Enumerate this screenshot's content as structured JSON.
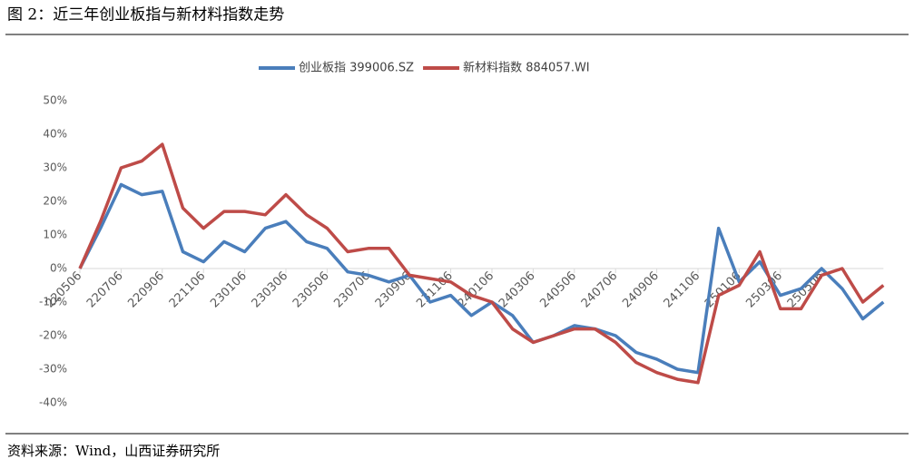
{
  "chart_data": {
    "type": "line",
    "title": "图 2：近三年创业板指与新材料指数走势",
    "source": "资料来源：Wind，山西证券研究所",
    "categories": [
      "220506",
      null,
      "220706",
      null,
      "220906",
      null,
      "221106",
      null,
      "230106",
      null,
      "230306",
      null,
      "230506",
      null,
      "230706",
      null,
      "230906",
      null,
      "231106",
      null,
      "240106",
      null,
      "240306",
      null,
      "240506",
      null,
      "240706",
      null,
      "240906",
      null,
      "241106",
      null,
      "250106",
      null,
      "250306",
      null,
      "250506",
      null,
      null,
      null
    ],
    "series": [
      {
        "name": "创业板指 399006.SZ",
        "color": "#4a7ebb",
        "values": [
          0,
          12,
          25,
          22,
          23,
          5,
          2,
          8,
          5,
          12,
          14,
          8,
          6,
          -1,
          -2,
          -4,
          -2,
          -10,
          -8,
          -14,
          -10,
          -14,
          -22,
          -20,
          -17,
          -18,
          -20,
          -25,
          -27,
          -30,
          -31,
          12,
          -4,
          2,
          -8,
          -6,
          0,
          -6,
          -15,
          -10
        ]
      },
      {
        "name": "新材料指数 884057.WI",
        "color": "#be4b48",
        "values": [
          0,
          14,
          30,
          32,
          37,
          18,
          12,
          17,
          17,
          16,
          22,
          16,
          12,
          5,
          6,
          6,
          -2,
          -3,
          -4,
          -8,
          -10,
          -18,
          -22,
          -20,
          -18,
          -18,
          -22,
          -28,
          -31,
          -33,
          -34,
          -8,
          -5,
          5,
          -12,
          -12,
          -2,
          0,
          -10,
          -5
        ]
      }
    ],
    "ylim": [
      -40,
      50
    ],
    "yticks": [
      {
        "value": -40,
        "label": "-40%"
      },
      {
        "value": -30,
        "label": "-30%"
      },
      {
        "value": -20,
        "label": "-20%"
      },
      {
        "value": -10,
        "label": "-10%"
      },
      {
        "value": 0,
        "label": "0%"
      },
      {
        "value": 10,
        "label": "10%"
      },
      {
        "value": 20,
        "label": "20%"
      },
      {
        "value": 30,
        "label": "30%"
      },
      {
        "value": 40,
        "label": "40%"
      },
      {
        "value": 50,
        "label": "50%"
      }
    ],
    "legend": "top"
  }
}
